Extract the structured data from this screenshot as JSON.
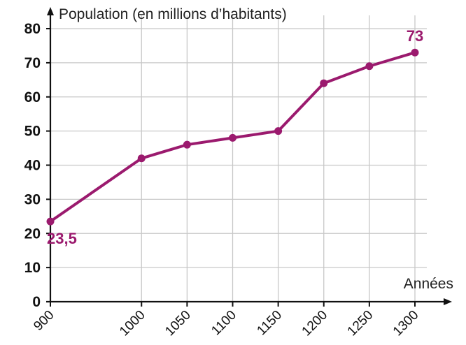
{
  "chart_data": {
    "type": "line",
    "ylabel": "Population (en millions d’habitants)",
    "xlabel": "Années",
    "x": [
      900,
      1000,
      1050,
      1100,
      1150,
      1200,
      1250,
      1300
    ],
    "x_tick_labels": [
      "900",
      "1000",
      "1050",
      "1100",
      "1150",
      "1200",
      "1250",
      "1300"
    ],
    "series": [
      {
        "values": [
          23.5,
          42,
          46,
          48,
          50,
          64,
          69,
          73
        ]
      }
    ],
    "y_ticks": [
      0,
      10,
      20,
      30,
      40,
      50,
      60,
      70,
      80
    ],
    "y_tick_labels": [
      "0",
      "10",
      "20",
      "30",
      "40",
      "50",
      "60",
      "70",
      "80"
    ],
    "ylim": [
      0,
      80
    ],
    "annotations": [
      {
        "x": 900,
        "y": 23.5,
        "text": "23,5"
      },
      {
        "x": 1300,
        "y": 73,
        "text": "73"
      }
    ],
    "grid": true,
    "colors": {
      "series": "#9b1a6e",
      "grid": "#c8c8c8",
      "axis": "#111111"
    }
  }
}
